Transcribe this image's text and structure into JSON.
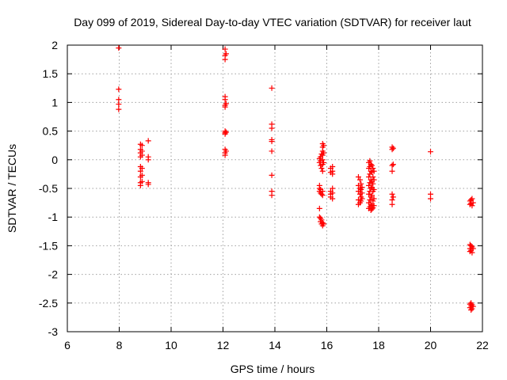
{
  "chart_data": {
    "type": "scatter",
    "title": "Day 099 of 2019, Sidereal Day-to-day VTEC variation (SDTVAR) for receiver laut",
    "xlabel": "GPS time / hours",
    "ylabel": "SDTVAR / TECUs",
    "xlim": [
      6,
      22
    ],
    "ylim": [
      -3,
      2
    ],
    "xticks": [
      6,
      8,
      10,
      12,
      14,
      16,
      18,
      20,
      22
    ],
    "yticks": [
      -3,
      -2.5,
      -2,
      -1.5,
      -1,
      -0.5,
      0,
      0.5,
      1,
      1.5,
      2
    ],
    "xtick_labels": [
      "6",
      "8",
      "10",
      "12",
      "14",
      "16",
      "18",
      "20",
      "22"
    ],
    "ytick_labels": [
      "-3",
      "-2.5",
      "-2",
      "-1.5",
      "-1",
      "-0.5",
      "0",
      "0.5",
      "1",
      "1.5",
      "2"
    ],
    "grid": true,
    "marker": "plus",
    "marker_color": "#ff0000",
    "series": [
      {
        "name": "SDTVAR",
        "points": [
          [
            7.98,
            1.95
          ],
          [
            7.98,
            1.23
          ],
          [
            7.98,
            1.05
          ],
          [
            7.98,
            0.97
          ],
          [
            7.98,
            0.88
          ],
          [
            8.82,
            0.27
          ],
          [
            8.82,
            0.18
          ],
          [
            8.82,
            0.12
          ],
          [
            8.82,
            0.05
          ],
          [
            8.82,
            -0.12
          ],
          [
            8.82,
            -0.2
          ],
          [
            8.82,
            -0.3
          ],
          [
            8.82,
            -0.4
          ],
          [
            8.82,
            -0.45
          ],
          [
            8.88,
            0.25
          ],
          [
            8.88,
            0.15
          ],
          [
            8.88,
            0.08
          ],
          [
            8.88,
            -0.15
          ],
          [
            8.88,
            -0.27
          ],
          [
            8.88,
            -0.38
          ],
          [
            9.12,
            0.33
          ],
          [
            9.12,
            0.05
          ],
          [
            9.12,
            0.0
          ],
          [
            9.12,
            -0.4
          ],
          [
            9.12,
            -0.43
          ],
          [
            12.08,
            1.93
          ],
          [
            12.08,
            1.82
          ],
          [
            12.08,
            1.75
          ],
          [
            12.08,
            1.1
          ],
          [
            12.08,
            1.05
          ],
          [
            12.08,
            0.95
          ],
          [
            12.08,
            0.92
          ],
          [
            12.08,
            0.5
          ],
          [
            12.08,
            0.47
          ],
          [
            12.08,
            0.45
          ],
          [
            12.08,
            0.18
          ],
          [
            12.08,
            0.12
          ],
          [
            12.08,
            0.08
          ],
          [
            12.12,
            1.85
          ],
          [
            12.12,
            0.98
          ],
          [
            12.12,
            0.48
          ],
          [
            12.12,
            0.15
          ],
          [
            13.88,
            1.25
          ],
          [
            13.88,
            0.62
          ],
          [
            13.88,
            0.55
          ],
          [
            13.88,
            0.35
          ],
          [
            13.88,
            0.32
          ],
          [
            13.88,
            0.15
          ],
          [
            13.88,
            -0.27
          ],
          [
            13.88,
            -0.55
          ],
          [
            13.88,
            -0.62
          ],
          [
            15.72,
            0.02
          ],
          [
            15.72,
            -0.05
          ],
          [
            15.72,
            -0.45
          ],
          [
            15.72,
            -0.5
          ],
          [
            15.72,
            -0.55
          ],
          [
            15.72,
            -0.85
          ],
          [
            15.72,
            -1.0
          ],
          [
            15.76,
            0.05
          ],
          [
            15.76,
            -0.02
          ],
          [
            15.76,
            -0.1
          ],
          [
            15.76,
            -0.52
          ],
          [
            15.76,
            -0.58
          ],
          [
            15.76,
            -1.02
          ],
          [
            15.76,
            -1.08
          ],
          [
            15.8,
            0.1
          ],
          [
            15.8,
            -0.15
          ],
          [
            15.8,
            -0.6
          ],
          [
            15.8,
            -1.05
          ],
          [
            15.8,
            -1.12
          ],
          [
            15.84,
            0.28
          ],
          [
            15.84,
            0.22
          ],
          [
            15.84,
            0.15
          ],
          [
            15.84,
            0.08
          ],
          [
            15.84,
            0.0
          ],
          [
            15.84,
            -0.08
          ],
          [
            15.84,
            -0.2
          ],
          [
            15.84,
            -0.55
          ],
          [
            15.84,
            -0.62
          ],
          [
            15.84,
            -1.1
          ],
          [
            15.84,
            -1.15
          ],
          [
            15.88,
            0.25
          ],
          [
            15.88,
            0.12
          ],
          [
            15.88,
            -0.05
          ],
          [
            15.88,
            -1.12
          ],
          [
            16.15,
            -0.15
          ],
          [
            16.15,
            -0.22
          ],
          [
            16.15,
            -0.55
          ],
          [
            16.15,
            -0.6
          ],
          [
            16.15,
            -0.65
          ],
          [
            16.22,
            -0.12
          ],
          [
            16.22,
            -0.2
          ],
          [
            16.22,
            -0.25
          ],
          [
            16.22,
            -0.5
          ],
          [
            16.22,
            -0.58
          ],
          [
            16.22,
            -0.68
          ],
          [
            17.22,
            -0.3
          ],
          [
            17.22,
            -0.45
          ],
          [
            17.22,
            -0.55
          ],
          [
            17.22,
            -0.7
          ],
          [
            17.22,
            -0.78
          ],
          [
            17.28,
            -0.35
          ],
          [
            17.28,
            -0.5
          ],
          [
            17.28,
            -0.6
          ],
          [
            17.28,
            -0.75
          ],
          [
            17.32,
            -0.42
          ],
          [
            17.32,
            -0.52
          ],
          [
            17.32,
            -0.65
          ],
          [
            17.32,
            -0.72
          ],
          [
            17.36,
            -0.48
          ],
          [
            17.36,
            -0.58
          ],
          [
            17.36,
            -0.68
          ],
          [
            17.62,
            -0.05
          ],
          [
            17.62,
            -0.15
          ],
          [
            17.62,
            -0.3
          ],
          [
            17.62,
            -0.45
          ],
          [
            17.62,
            -0.6
          ],
          [
            17.62,
            -0.75
          ],
          [
            17.62,
            -0.85
          ],
          [
            17.66,
            -0.02
          ],
          [
            17.66,
            -0.12
          ],
          [
            17.66,
            -0.25
          ],
          [
            17.66,
            -0.4
          ],
          [
            17.66,
            -0.55
          ],
          [
            17.66,
            -0.7
          ],
          [
            17.66,
            -0.82
          ],
          [
            17.7,
            -0.08
          ],
          [
            17.7,
            -0.2
          ],
          [
            17.7,
            -0.35
          ],
          [
            17.7,
            -0.5
          ],
          [
            17.7,
            -0.65
          ],
          [
            17.7,
            -0.78
          ],
          [
            17.7,
            -0.88
          ],
          [
            17.74,
            -0.1
          ],
          [
            17.74,
            -0.22
          ],
          [
            17.74,
            -0.38
          ],
          [
            17.74,
            -0.48
          ],
          [
            17.74,
            -0.62
          ],
          [
            17.74,
            -0.8
          ],
          [
            17.74,
            -0.86
          ],
          [
            17.78,
            -0.15
          ],
          [
            17.78,
            -0.3
          ],
          [
            17.78,
            -0.42
          ],
          [
            17.78,
            -0.55
          ],
          [
            17.78,
            -0.72
          ],
          [
            17.78,
            -0.84
          ],
          [
            17.82,
            -0.2
          ],
          [
            17.82,
            -0.35
          ],
          [
            17.82,
            -0.52
          ],
          [
            17.82,
            -0.68
          ],
          [
            17.82,
            -0.8
          ],
          [
            18.52,
            0.22
          ],
          [
            18.52,
            0.18
          ],
          [
            18.52,
            -0.1
          ],
          [
            18.52,
            -0.2
          ],
          [
            18.52,
            -0.6
          ],
          [
            18.52,
            -0.7
          ],
          [
            18.52,
            -0.78
          ],
          [
            18.56,
            0.2
          ],
          [
            18.56,
            -0.08
          ],
          [
            18.56,
            -0.65
          ],
          [
            20.0,
            0.14
          ],
          [
            20.0,
            -0.6
          ],
          [
            20.0,
            -0.68
          ],
          [
            21.52,
            -0.72
          ],
          [
            21.52,
            -0.78
          ],
          [
            21.52,
            -1.48
          ],
          [
            21.52,
            -1.55
          ],
          [
            21.52,
            -1.6
          ],
          [
            21.52,
            -2.52
          ],
          [
            21.52,
            -2.58
          ],
          [
            21.56,
            -0.7
          ],
          [
            21.56,
            -0.76
          ],
          [
            21.56,
            -1.5
          ],
          [
            21.56,
            -1.58
          ],
          [
            21.56,
            -2.5
          ],
          [
            21.56,
            -2.55
          ],
          [
            21.56,
            -2.62
          ],
          [
            21.6,
            -0.68
          ],
          [
            21.6,
            -0.8
          ],
          [
            21.6,
            -1.52
          ],
          [
            21.6,
            -1.62
          ],
          [
            21.6,
            -2.53
          ],
          [
            21.6,
            -2.6
          ],
          [
            21.64,
            -0.75
          ],
          [
            21.64,
            -1.55
          ],
          [
            21.64,
            -2.56
          ]
        ]
      }
    ]
  }
}
